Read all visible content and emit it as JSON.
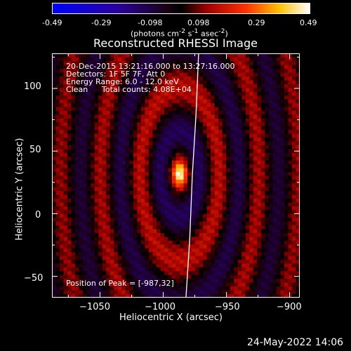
{
  "colorbar": {
    "ticks": [
      "-0.49",
      "-0.29",
      "-0.098",
      "0.098",
      "0.29",
      "0.49"
    ],
    "units_html": "(photons cm<sup>-2</sup> s<sup>-1</sup> asec<sup>-2</sup>)",
    "colors": [
      "#0000ff",
      "#000000",
      "#ff0000",
      "#ffff00",
      "#ffffff"
    ]
  },
  "title": "Reconstructed RHESSI Image",
  "annotations": {
    "line1": "20-Dec-2015 13:21:16.000 to 13:27:16.000",
    "line2": "Detectors: 1F 5F 7F, Att 0",
    "line3": "Energy Range: 6.0 - 12.0 keV",
    "line4_a": "Clean",
    "line4_b": "Total counts: 4.08E+04",
    "peak": "Position of Peak = [-987,32]"
  },
  "date_stamp": "24-May-2022 14:06",
  "chart_data": {
    "type": "heatmap",
    "title": "Reconstructed RHESSI Image",
    "xlabel": "Heliocentric X (arcsec)",
    "ylabel": "Heliocentric Y (arcsec)",
    "xlim": [
      -1088,
      -892
    ],
    "ylim": [
      -67,
      128
    ],
    "xticks": [
      -1050,
      -1000,
      -950,
      -900
    ],
    "xtick_labels": [
      "−1050",
      "−1000",
      "−950",
      "−900"
    ],
    "yticks": [
      -50,
      0,
      50,
      100
    ],
    "ytick_labels": [
      "−50",
      "0",
      "50",
      "100"
    ],
    "color_range": [
      -0.49,
      0.49
    ],
    "peak": {
      "x": -987,
      "y": 32,
      "value": 0.49
    },
    "limb": [
      [
        -972,
        128
      ],
      [
        -974,
        80
      ],
      [
        -977,
        30
      ],
      [
        -979,
        -20
      ],
      [
        -982,
        -67
      ]
    ]
  }
}
